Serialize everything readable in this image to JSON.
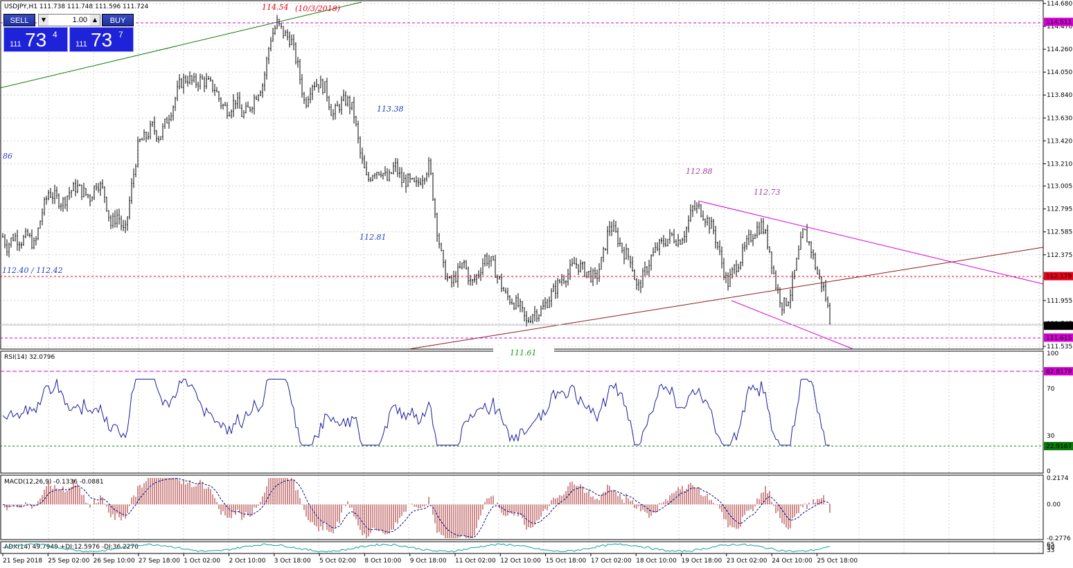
{
  "symbol_header": "USDJPY,H1  111.738 111.748 111.596 111.724",
  "trade_panel": {
    "sell_label": "SELL",
    "buy_label": "BUY",
    "lot_value": "1.00",
    "sell_price_small": "111",
    "sell_price_big": "73",
    "sell_price_sup": "4",
    "buy_price_small": "111",
    "buy_price_big": "73",
    "buy_price_sup": "7",
    "down_arrow": "▼",
    "up_arrow": "▲"
  },
  "colors": {
    "bars": "#000000",
    "grid": "#c8c8c8",
    "magenta": "#d400d4",
    "red_dash": "#e8001a",
    "green_line": "#0a7a0a",
    "brown_line": "#8b1a1a",
    "rsi_line": "#1a1a9c",
    "macd_hist": "#a01c1c",
    "adx_line": "#10a0a0"
  },
  "price_axis": {
    "ticks": [
      "114.680",
      "114.470",
      "114.260",
      "114.050",
      "113.840",
      "113.630",
      "113.420",
      "113.210",
      "113.005",
      "112.795",
      "112.585",
      "112.375",
      "112.165",
      "111.955",
      "111.745",
      "111.535"
    ],
    "badges": [
      {
        "text": "114.511",
        "color": "#d400d4"
      },
      {
        "text": "112.179",
        "color": "#e8001a"
      },
      {
        "text": "111.724",
        "color": "#000000"
      },
      {
        "text": "111.615",
        "color": "#d400d4"
      }
    ]
  },
  "annotations": {
    "high_price": "114.54",
    "high_date": "(10/3/2018)",
    "a_113_38": "113.38",
    "a_86": "86",
    "a_112_81": "112.81",
    "a_112_40": "112.40 / 112.42",
    "a_112_88": "112.88",
    "a_112_73": "112.73",
    "a_111_61": "111.61"
  },
  "rsi": {
    "label": "RSI(14) 32.0796",
    "ticks": [
      "100",
      "70",
      "30",
      "0"
    ],
    "upper_badge": "82.8179",
    "lower_badge": "22.9167"
  },
  "macd": {
    "label": "MACD(12,26,9) -0.1336 -0.0881",
    "ticks": [
      "0.2174",
      "0.00",
      "-0.2776"
    ]
  },
  "adx": {
    "label": "ADX(14) 49.7949 +DI:12.5976 -DI:36.2270",
    "ticks": [
      "65",
      "50",
      "33"
    ]
  },
  "time_axis": [
    "21 Sep 2018",
    "25 Sep 02:00",
    "26 Sep 10:00",
    "27 Sep 18:00",
    "1 Oct 02:00",
    "2 Oct 10:00",
    "3 Oct 18:00",
    "5 Oct 02:00",
    "8 Oct 10:00",
    "9 Oct 18:00",
    "11 Oct 02:00",
    "12 Oct 10:00",
    "15 Oct 18:00",
    "17 Oct 02:00",
    "18 Oct 10:00",
    "19 Oct 18:00",
    "23 Oct 02:00",
    "24 Oct 10:00",
    "25 Oct 18:00"
  ],
  "chart_data": {
    "type": "candlestick",
    "instrument": "USDJPY",
    "timeframe": "H1",
    "ylim": [
      111.535,
      114.68
    ],
    "close_path": [
      [
        0,
        112.6
      ],
      [
        10,
        112.45
      ],
      [
        20,
        112.55
      ],
      [
        30,
        112.5
      ],
      [
        40,
        112.55
      ],
      [
        50,
        112.45
      ],
      [
        60,
        112.75
      ],
      [
        70,
        112.95
      ],
      [
        80,
        112.9
      ],
      [
        90,
        112.85
      ],
      [
        100,
        112.95
      ],
      [
        110,
        113.0
      ],
      [
        120,
        112.95
      ],
      [
        130,
        112.9
      ],
      [
        140,
        113.05
      ],
      [
        150,
        112.95
      ],
      [
        160,
        112.65
      ],
      [
        170,
        112.75
      ],
      [
        180,
        112.55
      ],
      [
        190,
        113.0
      ],
      [
        200,
        113.4
      ],
      [
        210,
        113.45
      ],
      [
        220,
        113.55
      ],
      [
        230,
        113.45
      ],
      [
        240,
        113.6
      ],
      [
        250,
        113.75
      ],
      [
        260,
        113.95
      ],
      [
        270,
        114.0
      ],
      [
        280,
        113.95
      ],
      [
        290,
        113.98
      ],
      [
        300,
        113.95
      ],
      [
        310,
        113.9
      ],
      [
        320,
        113.75
      ],
      [
        330,
        113.7
      ],
      [
        340,
        113.8
      ],
      [
        350,
        113.65
      ],
      [
        360,
        113.72
      ],
      [
        370,
        113.85
      ],
      [
        380,
        113.95
      ],
      [
        390,
        114.35
      ],
      [
        400,
        114.5
      ],
      [
        410,
        114.4
      ],
      [
        420,
        114.35
      ],
      [
        430,
        114.1
      ],
      [
        440,
        113.75
      ],
      [
        450,
        113.95
      ],
      [
        460,
        113.95
      ],
      [
        470,
        113.9
      ],
      [
        480,
        113.65
      ],
      [
        490,
        113.75
      ],
      [
        500,
        113.8
      ],
      [
        510,
        113.7
      ],
      [
        520,
        113.3
      ],
      [
        530,
        113.05
      ],
      [
        540,
        113.15
      ],
      [
        550,
        113.15
      ],
      [
        560,
        113.05
      ],
      [
        570,
        113.2
      ],
      [
        580,
        113.05
      ],
      [
        590,
        113.05
      ],
      [
        600,
        113.0
      ],
      [
        610,
        113.1
      ],
      [
        620,
        113.2
      ],
      [
        630,
        112.65
      ],
      [
        640,
        112.25
      ],
      [
        650,
        112.1
      ],
      [
        660,
        112.2
      ],
      [
        670,
        112.3
      ],
      [
        680,
        112.1
      ],
      [
        690,
        112.2
      ],
      [
        700,
        112.35
      ],
      [
        710,
        112.3
      ],
      [
        720,
        112.15
      ],
      [
        730,
        112.0
      ],
      [
        740,
        111.95
      ],
      [
        750,
        111.9
      ],
      [
        760,
        111.75
      ],
      [
        770,
        111.85
      ],
      [
        780,
        111.85
      ],
      [
        790,
        111.95
      ],
      [
        800,
        112.05
      ],
      [
        810,
        112.15
      ],
      [
        820,
        112.2
      ],
      [
        830,
        112.3
      ],
      [
        840,
        112.25
      ],
      [
        850,
        112.2
      ],
      [
        860,
        112.15
      ],
      [
        870,
        112.35
      ],
      [
        880,
        112.65
      ],
      [
        890,
        112.55
      ],
      [
        900,
        112.4
      ],
      [
        910,
        112.35
      ],
      [
        920,
        112.05
      ],
      [
        930,
        112.2
      ],
      [
        940,
        112.35
      ],
      [
        950,
        112.45
      ],
      [
        960,
        112.5
      ],
      [
        970,
        112.55
      ],
      [
        980,
        112.5
      ],
      [
        990,
        112.6
      ],
      [
        1000,
        112.8
      ],
      [
        1010,
        112.8
      ],
      [
        1020,
        112.7
      ],
      [
        1030,
        112.6
      ],
      [
        1040,
        112.35
      ],
      [
        1050,
        112.1
      ],
      [
        1060,
        112.25
      ],
      [
        1070,
        112.35
      ],
      [
        1080,
        112.5
      ],
      [
        1090,
        112.6
      ],
      [
        1100,
        112.65
      ],
      [
        1110,
        112.45
      ],
      [
        1120,
        112.1
      ],
      [
        1130,
        111.9
      ],
      [
        1140,
        112.0
      ],
      [
        1150,
        112.3
      ],
      [
        1160,
        112.6
      ],
      [
        1170,
        112.45
      ],
      [
        1180,
        112.2
      ],
      [
        1190,
        112.05
      ],
      [
        1200,
        111.72
      ]
    ]
  }
}
